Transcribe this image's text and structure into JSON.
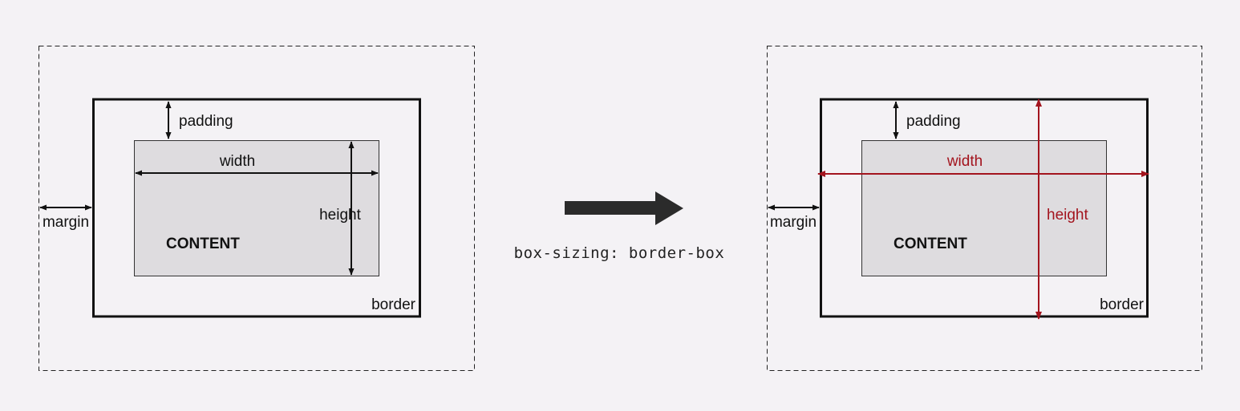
{
  "colors": {
    "background": "#f4f2f5",
    "content_fill": "#dedcdf",
    "line": "#111111",
    "highlight": "#a3141e",
    "transition_arrow": "#2b2b2b"
  },
  "left_diagram": {
    "padding_label": "padding",
    "width_label": "width",
    "height_label": "height",
    "margin_label": "margin",
    "content_label": "CONTENT",
    "border_label": "border"
  },
  "transition": {
    "caption": "box-sizing: border-box"
  },
  "right_diagram": {
    "padding_label": "padding",
    "width_label": "width",
    "height_label": "height",
    "margin_label": "margin",
    "content_label": "CONTENT",
    "border_label": "border"
  }
}
